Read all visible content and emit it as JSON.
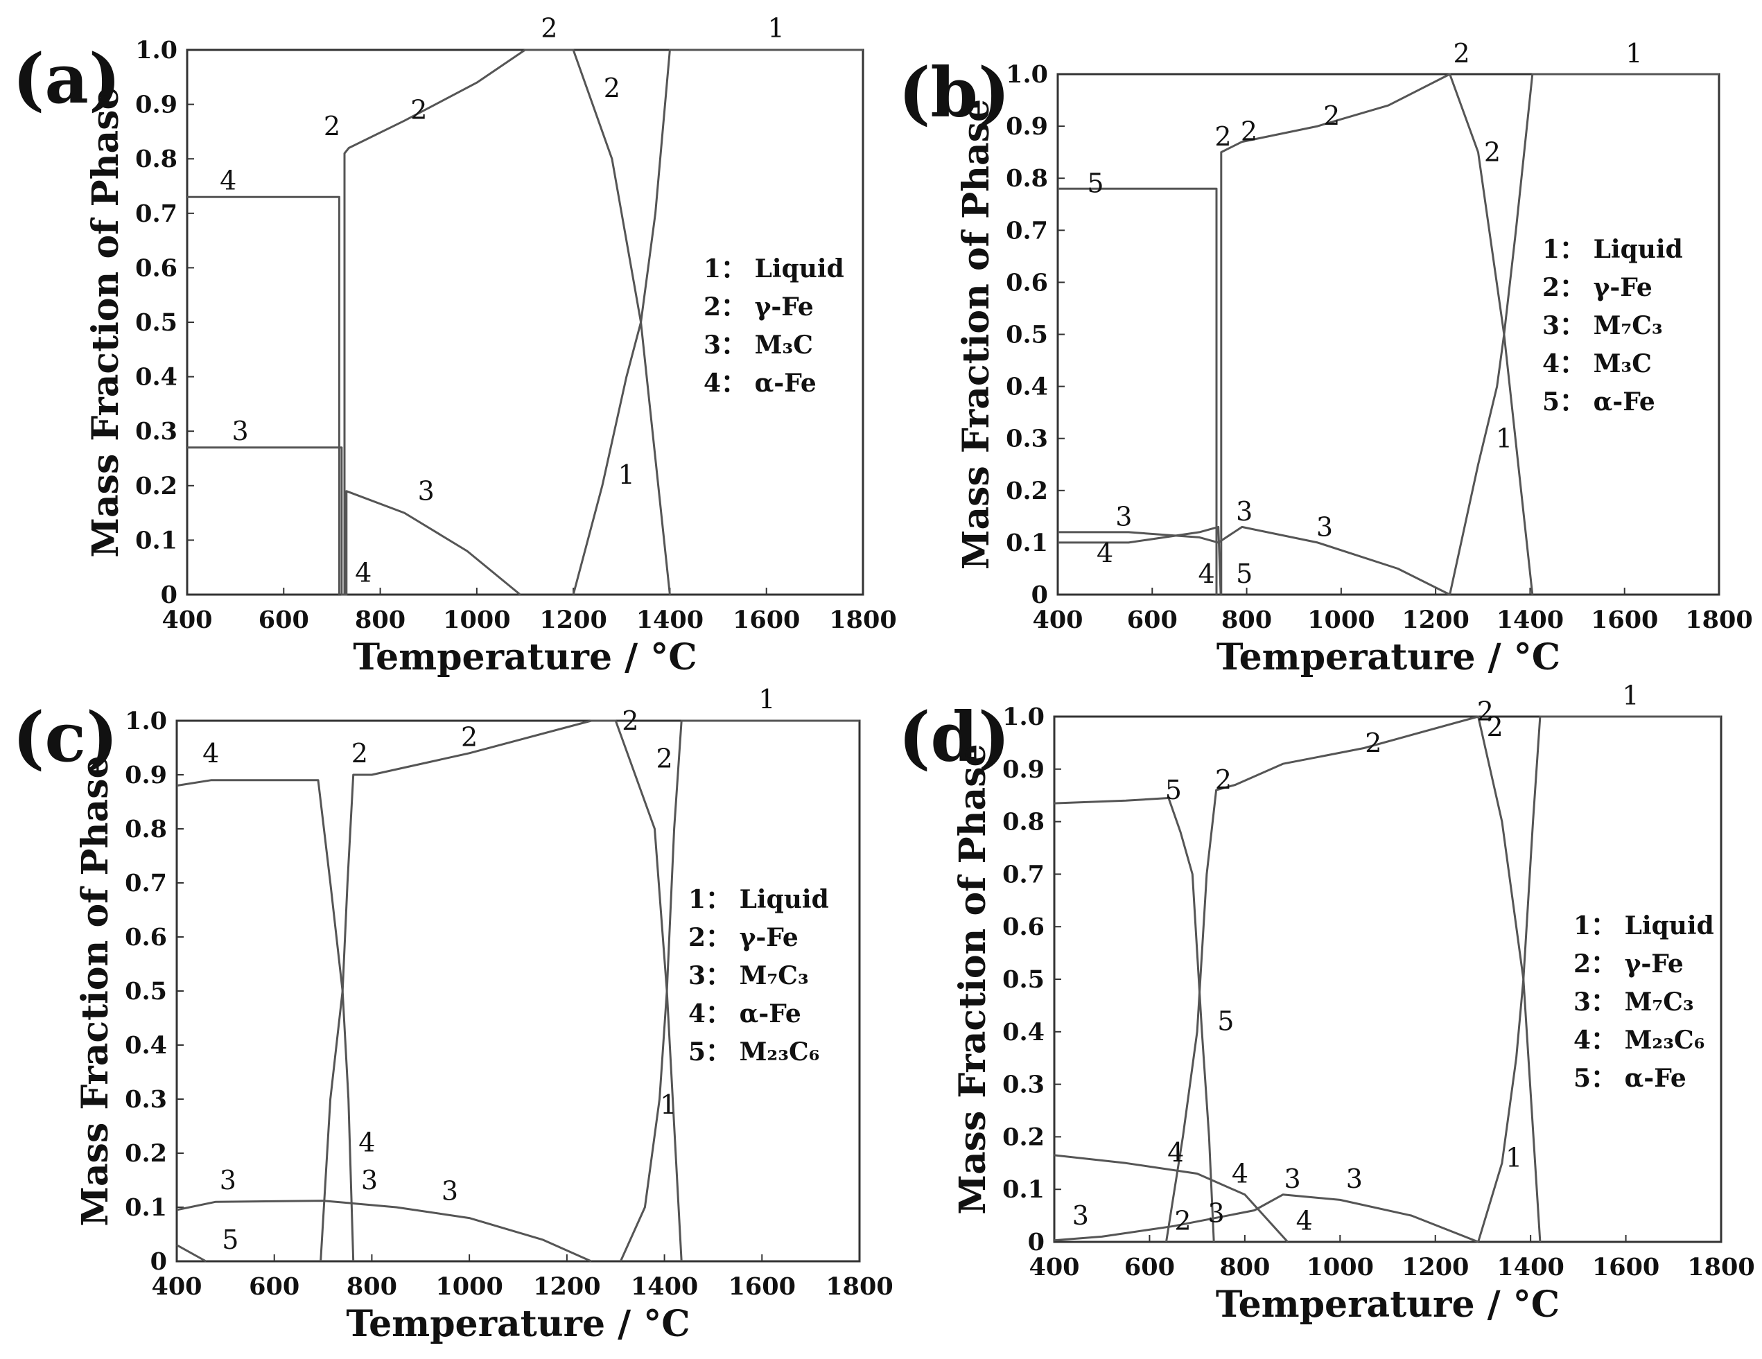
{
  "figure": "Mass fraction of phases vs temperature, four panels",
  "chart_data": [
    {
      "id": "a",
      "type": "line",
      "panel_label": "(a)",
      "xlabel": "Temperature / °C",
      "ylabel": "Mass Fraction of  Phase",
      "xlim": [
        400,
        1800
      ],
      "ylim": [
        0,
        1.0
      ],
      "x_ticks": [
        "400",
        "600",
        "800",
        "1000",
        "1200",
        "1400",
        "1600",
        "1800"
      ],
      "y_ticks": [
        "0",
        "0.1",
        "0.2",
        "0.3",
        "0.4",
        "0.5",
        "0.6",
        "0.7",
        "0.8",
        "0.9",
        "1.0"
      ],
      "legend": [
        "1：  Liquid",
        "2：  γ-Fe",
        "3：  M₃C",
        "4：  α-Fe"
      ],
      "series": [
        {
          "id": "1",
          "name": "Liquid",
          "points": [
            [
              1200,
              0
            ],
            [
              1260,
              0.2
            ],
            [
              1310,
              0.4
            ],
            [
              1340,
              0.5
            ],
            [
              1370,
              0.7
            ],
            [
              1400,
              1.0
            ],
            [
              1800,
              1.0
            ]
          ]
        },
        {
          "id": "2",
          "name": "γ-Fe",
          "points": [
            [
              726,
              0
            ],
            [
              726,
              0.81
            ],
            [
              735,
              0.82
            ],
            [
              850,
              0.87
            ],
            [
              1000,
              0.94
            ],
            [
              1100,
              1.0
            ],
            [
              1200,
              1.0
            ],
            [
              1280,
              0.8
            ],
            [
              1340,
              0.5
            ],
            [
              1400,
              0
            ]
          ]
        },
        {
          "id": "3",
          "name": "M₃C",
          "points": [
            [
              400,
              0.27
            ],
            [
              720,
              0.27
            ],
            [
              720,
              0.0
            ],
            [
              730,
              0.0
            ],
            [
              730,
              0.19
            ],
            [
              850,
              0.15
            ],
            [
              980,
              0.08
            ],
            [
              1090,
              0
            ]
          ]
        },
        {
          "id": "4",
          "name": "α-Fe",
          "points": [
            [
              400,
              0.73
            ],
            [
              715,
              0.73
            ],
            [
              715,
              0
            ]
          ]
        }
      ],
      "annotations": [
        {
          "text": "1",
          "x": 1620,
          "y": 1.04
        },
        {
          "text": "2",
          "x": 1150,
          "y": 1.04
        },
        {
          "text": "2",
          "x": 880,
          "y": 0.89
        },
        {
          "text": "2",
          "x": 1280,
          "y": 0.93
        },
        {
          "text": "2",
          "x": 700,
          "y": 0.86
        },
        {
          "text": "4",
          "x": 485,
          "y": 0.76
        },
        {
          "text": "3",
          "x": 510,
          "y": 0.3
        },
        {
          "text": "3",
          "x": 895,
          "y": 0.19
        },
        {
          "text": "1",
          "x": 1310,
          "y": 0.22
        },
        {
          "text": "4",
          "x": 765,
          "y": 0.04
        }
      ]
    },
    {
      "id": "b",
      "type": "line",
      "panel_label": "(b)",
      "xlabel": "Temperature / °C",
      "ylabel": "Mass Fraction of  Phase",
      "xlim": [
        400,
        1800
      ],
      "ylim": [
        0,
        1.0
      ],
      "x_ticks": [
        "400",
        "600",
        "800",
        "1000",
        "1200",
        "1400",
        "1600",
        "1800"
      ],
      "y_ticks": [
        "0",
        "0.1",
        "0.2",
        "0.3",
        "0.4",
        "0.5",
        "0.6",
        "0.7",
        "0.8",
        "0.9",
        "1.0"
      ],
      "legend": [
        "1：  Liquid",
        "2：  γ-Fe",
        "3：  M₇C₃",
        "4：  M₃C",
        "5：  α-Fe"
      ],
      "series": [
        {
          "id": "1",
          "name": "Liquid",
          "points": [
            [
              1230,
              0
            ],
            [
              1290,
              0.25
            ],
            [
              1330,
              0.4
            ],
            [
              1345,
              0.5
            ],
            [
              1370,
              0.7
            ],
            [
              1405,
              1.0
            ],
            [
              1800,
              1.0
            ]
          ]
        },
        {
          "id": "2",
          "name": "γ-Fe",
          "points": [
            [
              746,
              0
            ],
            [
              746,
              0.85
            ],
            [
              790,
              0.87
            ],
            [
              950,
              0.9
            ],
            [
              1100,
              0.94
            ],
            [
              1230,
              1.0
            ],
            [
              1290,
              0.85
            ],
            [
              1345,
              0.5
            ],
            [
              1405,
              0
            ]
          ]
        },
        {
          "id": "3",
          "name": "M₇C₃",
          "points": [
            [
              400,
              0.12
            ],
            [
              550,
              0.12
            ],
            [
              700,
              0.11
            ],
            [
              740,
              0.1
            ],
            [
              790,
              0.13
            ],
            [
              950,
              0.1
            ],
            [
              1120,
              0.05
            ],
            [
              1230,
              0
            ]
          ]
        },
        {
          "id": "4",
          "name": "M₃C",
          "points": [
            [
              400,
              0.1
            ],
            [
              550,
              0.1
            ],
            [
              700,
              0.12
            ],
            [
              740,
              0.13
            ],
            [
              745,
              0
            ]
          ]
        },
        {
          "id": "5",
          "name": "α-Fe",
          "points": [
            [
              400,
              0.78
            ],
            [
              736,
              0.78
            ],
            [
              736,
              0
            ]
          ]
        }
      ],
      "annotations": [
        {
          "text": "1",
          "x": 1620,
          "y": 1.04
        },
        {
          "text": "2",
          "x": 1255,
          "y": 1.04
        },
        {
          "text": "2",
          "x": 750,
          "y": 0.88
        },
        {
          "text": "2",
          "x": 805,
          "y": 0.89
        },
        {
          "text": "2",
          "x": 980,
          "y": 0.92
        },
        {
          "text": "2",
          "x": 1320,
          "y": 0.85
        },
        {
          "text": "5",
          "x": 480,
          "y": 0.79
        },
        {
          "text": "3",
          "x": 540,
          "y": 0.15
        },
        {
          "text": "4",
          "x": 500,
          "y": 0.08
        },
        {
          "text": "4",
          "x": 715,
          "y": 0.04
        },
        {
          "text": "3",
          "x": 795,
          "y": 0.16
        },
        {
          "text": "5",
          "x": 795,
          "y": 0.04
        },
        {
          "text": "3",
          "x": 965,
          "y": 0.13
        },
        {
          "text": "1",
          "x": 1345,
          "y": 0.3
        }
      ]
    },
    {
      "id": "c",
      "type": "line",
      "panel_label": "(c)",
      "xlabel": "Temperature / °C",
      "ylabel": "Mass Fraction of  Phase",
      "xlim": [
        400,
        1800
      ],
      "ylim": [
        0,
        1.0
      ],
      "x_ticks": [
        "400",
        "600",
        "800",
        "1000",
        "1200",
        "1400",
        "1600",
        "1800"
      ],
      "y_ticks": [
        "0",
        "0.1",
        "0.2",
        "0.3",
        "0.4",
        "0.5",
        "0.6",
        "0.7",
        "0.8",
        "0.9",
        "1.0"
      ],
      "legend": [
        "1：  Liquid",
        "2：  γ-Fe",
        "3：  M₇C₃",
        "4：  α-Fe",
        "5：  M₂₃C₆"
      ],
      "series": [
        {
          "id": "1",
          "name": "Liquid",
          "points": [
            [
              1310,
              0
            ],
            [
              1360,
              0.1
            ],
            [
              1390,
              0.3
            ],
            [
              1405,
              0.5
            ],
            [
              1420,
              0.8
            ],
            [
              1435,
              1.0
            ],
            [
              1800,
              1.0
            ]
          ]
        },
        {
          "id": "2",
          "name": "γ-Fe",
          "points": [
            [
              695,
              0
            ],
            [
              715,
              0.3
            ],
            [
              740,
              0.5
            ],
            [
              750,
              0.7
            ],
            [
              762,
              0.9
            ],
            [
              800,
              0.9
            ],
            [
              1000,
              0.94
            ],
            [
              1250,
              1.0
            ],
            [
              1300,
              1.0
            ],
            [
              1380,
              0.8
            ],
            [
              1405,
              0.5
            ],
            [
              1435,
              0
            ]
          ]
        },
        {
          "id": "3",
          "name": "M₇C₃",
          "points": [
            [
              400,
              0.095
            ],
            [
              480,
              0.11
            ],
            [
              700,
              0.112
            ],
            [
              850,
              0.1
            ],
            [
              1000,
              0.08
            ],
            [
              1150,
              0.04
            ],
            [
              1250,
              0
            ]
          ]
        },
        {
          "id": "4",
          "name": "α-Fe",
          "points": [
            [
              400,
              0.88
            ],
            [
              470,
              0.89
            ],
            [
              690,
              0.89
            ],
            [
              715,
              0.7
            ],
            [
              740,
              0.5
            ],
            [
              752,
              0.3
            ],
            [
              762,
              0
            ]
          ]
        },
        {
          "id": "5",
          "name": "M₂₃C₆",
          "points": [
            [
              400,
              0.03
            ],
            [
              460,
              0
            ]
          ]
        }
      ],
      "annotations": [
        {
          "text": "1",
          "x": 1610,
          "y": 1.04
        },
        {
          "text": "2",
          "x": 1330,
          "y": 1.0
        },
        {
          "text": "2",
          "x": 1000,
          "y": 0.97
        },
        {
          "text": "2",
          "x": 775,
          "y": 0.94
        },
        {
          "text": "2",
          "x": 1400,
          "y": 0.93
        },
        {
          "text": "4",
          "x": 470,
          "y": 0.94
        },
        {
          "text": "4",
          "x": 790,
          "y": 0.22
        },
        {
          "text": "3",
          "x": 505,
          "y": 0.15
        },
        {
          "text": "3",
          "x": 795,
          "y": 0.15
        },
        {
          "text": "3",
          "x": 960,
          "y": 0.13
        },
        {
          "text": "5",
          "x": 510,
          "y": 0.04
        },
        {
          "text": "1",
          "x": 1408,
          "y": 0.29
        }
      ]
    },
    {
      "id": "d",
      "type": "line",
      "panel_label": "(d)",
      "xlabel": "Temperature / °C",
      "ylabel": "Mass Fraction of  Phase",
      "xlim": [
        400,
        1800
      ],
      "ylim": [
        0,
        1.0
      ],
      "x_ticks": [
        "400",
        "600",
        "800",
        "1000",
        "1200",
        "1400",
        "1600",
        "1800"
      ],
      "y_ticks": [
        "0",
        "0.1",
        "0.2",
        "0.3",
        "0.4",
        "0.5",
        "0.6",
        "0.7",
        "0.8",
        "0.9",
        "1.0"
      ],
      "legend": [
        "1：  Liquid",
        "2：  γ-Fe",
        "3：  M₇C₃",
        "4：  M₂₃C₆",
        "5：  α-Fe"
      ],
      "series": [
        {
          "id": "1",
          "name": "Liquid",
          "points": [
            [
              1290,
              0
            ],
            [
              1340,
              0.15
            ],
            [
              1370,
              0.35
            ],
            [
              1385,
              0.5
            ],
            [
              1405,
              0.8
            ],
            [
              1420,
              1.0
            ],
            [
              1800,
              1.0
            ]
          ]
        },
        {
          "id": "2",
          "name": "γ-Fe",
          "points": [
            [
              635,
              0
            ],
            [
              670,
              0.2
            ],
            [
              700,
              0.4
            ],
            [
              720,
              0.7
            ],
            [
              740,
              0.86
            ],
            [
              780,
              0.87
            ],
            [
              880,
              0.91
            ],
            [
              1050,
              0.94
            ],
            [
              1290,
              1.0
            ],
            [
              1340,
              0.8
            ],
            [
              1385,
              0.5
            ],
            [
              1420,
              0
            ]
          ]
        },
        {
          "id": "3",
          "name": "M₇C₃",
          "points": [
            [
              400,
              0.003
            ],
            [
              500,
              0.01
            ],
            [
              650,
              0.03
            ],
            [
              820,
              0.06
            ],
            [
              880,
              0.09
            ],
            [
              1000,
              0.08
            ],
            [
              1150,
              0.05
            ],
            [
              1290,
              0
            ]
          ]
        },
        {
          "id": "4",
          "name": "M₂₃C₆",
          "points": [
            [
              400,
              0.165
            ],
            [
              550,
              0.15
            ],
            [
              700,
              0.13
            ],
            [
              800,
              0.09
            ],
            [
              890,
              0
            ]
          ]
        },
        {
          "id": "5",
          "name": "α-Fe",
          "points": [
            [
              400,
              0.835
            ],
            [
              550,
              0.84
            ],
            [
              640,
              0.845
            ],
            [
              665,
              0.78
            ],
            [
              690,
              0.7
            ],
            [
              710,
              0.4
            ],
            [
              725,
              0.2
            ],
            [
              735,
              0
            ]
          ]
        }
      ],
      "annotations": [
        {
          "text": "1",
          "x": 1610,
          "y": 1.04
        },
        {
          "text": "2",
          "x": 1305,
          "y": 1.01
        },
        {
          "text": "2",
          "x": 1325,
          "y": 0.98
        },
        {
          "text": "2",
          "x": 1070,
          "y": 0.95
        },
        {
          "text": "2",
          "x": 755,
          "y": 0.88
        },
        {
          "text": "5",
          "x": 650,
          "y": 0.86
        },
        {
          "text": "5",
          "x": 760,
          "y": 0.42
        },
        {
          "text": "4",
          "x": 655,
          "y": 0.17
        },
        {
          "text": "4",
          "x": 790,
          "y": 0.13
        },
        {
          "text": "3",
          "x": 900,
          "y": 0.12
        },
        {
          "text": "3",
          "x": 1030,
          "y": 0.12
        },
        {
          "text": "3",
          "x": 455,
          "y": 0.05
        },
        {
          "text": "4",
          "x": 925,
          "y": 0.04
        },
        {
          "text": "1",
          "x": 1365,
          "y": 0.16
        },
        {
          "text": "2",
          "x": 670,
          "y": 0.04
        },
        {
          "text": "3",
          "x": 740,
          "y": 0.055
        }
      ]
    }
  ]
}
